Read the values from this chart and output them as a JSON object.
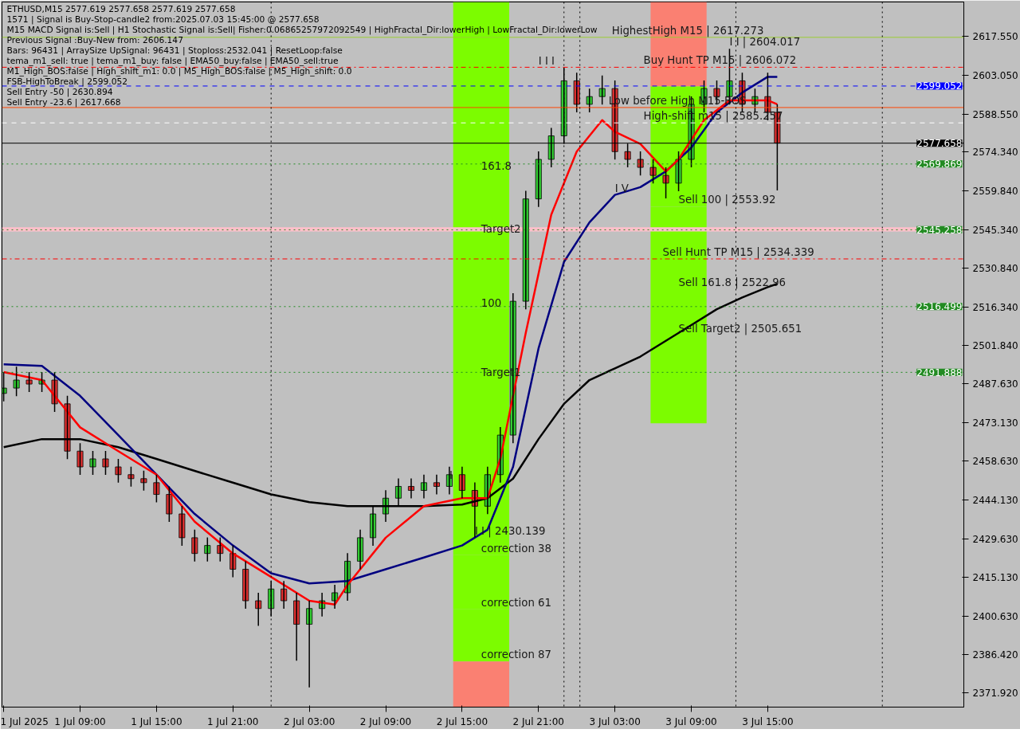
{
  "chart_data": {
    "type": "candlestick",
    "annotations": [
      "ETHUSD,M15  2577.619 2577.658 2577.619 2577.658",
      "1571 | Signal is Buy-Stop-candle2 from:2025.07.03 15:45:00 @ 2577.658",
      "M15 MACD Signal is:Sell | H1 Stochastic Signal is:Sell| Fisher:0.06865257972092549 | HighFractal_Dir:lowerHigh | LowFractal_Dir:lowerLow",
      "Previous Signal :Buy-New from: 2606.147",
      "Bars: 96431 | ArraySize UpSignal: 96431 | Stoploss:2532.041 | ResetLoop:false",
      "tema_m1_sell: true | tema_m1_buy: false | EMA50_buy:false | EMA50_sell:true",
      "M1_High_BOS:false | High_shift_m1: 0.0 | M5_High_BOS:false | M5_High_shift: 0.0",
      "                    FSB-HighToBreak | 2599.052",
      "Sell Entry -50 | 2630.894",
      "Sell Entry -23.6 | 2617.668",
      {
        "text": "I I | 2604.017",
        "x": "2025-07-03T12:00",
        "y": 2613.0
      },
      {
        "text": "HighestHigh   M15 | 2617.273",
        "x": "2025-07-03T02:45",
        "y": 2617.273
      },
      {
        "text": "I I I",
        "x": "2025-07-02T21:00",
        "y": 2606.0
      },
      {
        "text": "Buy Hunt TP M15 | 2606.072",
        "x": "2025-07-03T05:15",
        "y": 2606.072
      },
      {
        "text": "Low before High  M15-BOS",
        "x": "2025-07-03T02:30",
        "y": 2591.0
      },
      {
        "text": "High-shift m15 | 2585.257",
        "x": "2025-07-03T05:15",
        "y": 2585.257
      },
      {
        "text": "161.8",
        "x": "2025-07-02T16:30",
        "y": 2567.4
      },
      {
        "text": "Sell 100 | 2553.92",
        "x": "2025-07-03T08:00",
        "y": 2553.9
      },
      {
        "text": "Target2",
        "x": "2025-07-02T16:30",
        "y": 2543
      },
      {
        "text": "I V",
        "x": "2025-07-03T03:00",
        "y": 2558.3
      },
      {
        "text": "Sell Hunt TP M15 | 2534.339",
        "x": "2025-07-03T06:45",
        "y": 2534.339
      },
      {
        "text": "Sell 161.8 | 2522.96",
        "x": "2025-07-03T08:00",
        "y": 2523.0
      },
      {
        "text": "100",
        "x": "2025-07-02T16:30",
        "y": 2516.1
      },
      {
        "text": "Sell Target2 | 2505.651",
        "x": "2025-07-03T08:00",
        "y": 2505.7
      },
      {
        "text": "Target1",
        "x": "2025-07-02T16:30",
        "y": 2489.3
      },
      {
        "text": "I",
        "x": "2025-07-02T14:00",
        "y": 2450.7
      },
      {
        "text": "correction 38",
        "x": "2025-07-02T16:30",
        "y": 2423.5
      },
      {
        "text": "I I | 2430.139",
        "x": "2025-07-02T16:00",
        "y": 2430.1
      },
      {
        "text": "correction 61",
        "x": "2025-07-02T16:30",
        "y": 2403.2
      },
      {
        "text": "correction 87",
        "x": "2025-07-02T16:30",
        "y": 2383.7
      }
    ],
    "x": [
      "2025-07-01T03:00",
      "2025-07-01T04:00",
      "2025-07-01T05:00",
      "2025-07-01T06:00",
      "2025-07-01T07:00",
      "2025-07-01T08:00",
      "2025-07-01T09:00",
      "2025-07-01T10:00",
      "2025-07-01T11:00",
      "2025-07-01T12:00",
      "2025-07-01T13:00",
      "2025-07-01T14:00",
      "2025-07-01T15:00",
      "2025-07-01T16:00",
      "2025-07-01T17:00",
      "2025-07-01T18:00",
      "2025-07-01T19:00",
      "2025-07-01T20:00",
      "2025-07-01T21:00",
      "2025-07-01T22:00",
      "2025-07-01T23:00",
      "2025-07-02T00:00",
      "2025-07-02T01:00",
      "2025-07-02T02:00",
      "2025-07-02T03:00",
      "2025-07-02T04:00",
      "2025-07-02T05:00",
      "2025-07-02T06:00",
      "2025-07-02T07:00",
      "2025-07-02T08:00",
      "2025-07-02T09:00",
      "2025-07-02T10:00",
      "2025-07-02T11:00",
      "2025-07-02T12:00",
      "2025-07-02T13:00",
      "2025-07-02T14:00",
      "2025-07-02T15:00",
      "2025-07-02T16:00",
      "2025-07-02T17:00",
      "2025-07-02T18:00",
      "2025-07-02T19:00",
      "2025-07-02T20:00",
      "2025-07-02T21:00",
      "2025-07-02T22:00",
      "2025-07-02T23:00",
      "2025-07-03T00:00",
      "2025-07-03T01:00",
      "2025-07-03T02:00",
      "2025-07-03T03:00",
      "2025-07-03T04:00",
      "2025-07-03T05:00",
      "2025-07-03T06:00",
      "2025-07-03T07:00",
      "2025-07-03T08:00",
      "2025-07-03T09:00",
      "2025-07-03T10:00",
      "2025-07-03T11:00",
      "2025-07-03T12:00",
      "2025-07-03T13:00",
      "2025-07-03T14:00",
      "2025-07-03T15:00",
      "2025-07-03T15:45"
    ],
    "ohlc": [
      [
        2484.0,
        2492.0,
        2481.0,
        2486.0
      ],
      [
        2486.0,
        2494.0,
        2483.0,
        2489.0
      ],
      [
        2489.0,
        2492.0,
        2484.5,
        2487.5
      ],
      [
        2487.5,
        2492.0,
        2484.5,
        2489.0
      ],
      [
        2489.0,
        2492.0,
        2477.1,
        2480.1
      ],
      [
        2480.1,
        2483.1,
        2459.4,
        2462.4
      ],
      [
        2462.4,
        2465.4,
        2453.5,
        2456.5
      ],
      [
        2456.5,
        2462.5,
        2453.5,
        2459.5
      ],
      [
        2459.5,
        2462.5,
        2453.5,
        2456.5
      ],
      [
        2456.5,
        2459.5,
        2450.6,
        2453.6
      ],
      [
        2453.6,
        2456.6,
        2449.1,
        2452.1
      ],
      [
        2452.1,
        2455.1,
        2447.6,
        2450.6
      ],
      [
        2450.6,
        2453.6,
        2443.2,
        2446.2
      ],
      [
        2446.2,
        2449.2,
        2435.9,
        2438.9
      ],
      [
        2438.9,
        2441.9,
        2427.0,
        2430.0
      ],
      [
        2430.0,
        2433.0,
        2421.1,
        2424.1
      ],
      [
        2424.1,
        2430.1,
        2421.1,
        2427.1
      ],
      [
        2427.1,
        2430.1,
        2421.1,
        2424.1
      ],
      [
        2424.1,
        2427.1,
        2415.2,
        2418.2
      ],
      [
        2418.2,
        2421.2,
        2403.4,
        2406.4
      ],
      [
        2406.4,
        2409.4,
        2397.0,
        2403.5
      ],
      [
        2403.5,
        2413.8,
        2400.5,
        2410.8
      ],
      [
        2410.8,
        2413.8,
        2403.4,
        2406.4
      ],
      [
        2406.4,
        2409.4,
        2384.0,
        2397.6
      ],
      [
        2397.6,
        2406.5,
        2374.0,
        2403.5
      ],
      [
        2403.5,
        2409.4,
        2400.5,
        2406.4
      ],
      [
        2406.4,
        2412.4,
        2403.4,
        2409.4
      ],
      [
        2409.4,
        2424.2,
        2406.4,
        2421.2
      ],
      [
        2421.2,
        2433.0,
        2418.2,
        2430.0
      ],
      [
        2430.0,
        2441.9,
        2427.0,
        2438.9
      ],
      [
        2438.9,
        2447.8,
        2435.9,
        2444.8
      ],
      [
        2444.8,
        2452.2,
        2441.8,
        2449.2
      ],
      [
        2449.2,
        2452.2,
        2444.7,
        2447.7
      ],
      [
        2447.7,
        2453.6,
        2444.7,
        2450.6
      ],
      [
        2450.6,
        2453.6,
        2446.2,
        2449.2
      ],
      [
        2449.2,
        2456.6,
        2446.2,
        2453.6
      ],
      [
        2453.6,
        2456.6,
        2444.7,
        2447.7
      ],
      [
        2447.7,
        2450.7,
        2430.1,
        2441.8
      ],
      [
        2441.8,
        2456.6,
        2438.8,
        2453.6
      ],
      [
        2453.6,
        2471.4,
        2450.6,
        2468.4
      ],
      [
        2468.4,
        2521.5,
        2465.4,
        2518.5
      ],
      [
        2518.5,
        2559.8,
        2515.5,
        2556.8
      ],
      [
        2556.8,
        2574.6,
        2553.8,
        2571.6
      ],
      [
        2571.6,
        2583.4,
        2568.6,
        2580.4
      ],
      [
        2580.4,
        2606.0,
        2577.4,
        2601.0
      ],
      [
        2601.0,
        2604.0,
        2589.2,
        2592.2
      ],
      [
        2592.2,
        2598.1,
        2589.2,
        2595.1
      ],
      [
        2595.1,
        2603.0,
        2592.1,
        2598.1
      ],
      [
        2598.1,
        2601.1,
        2571.5,
        2574.5
      ],
      [
        2574.5,
        2577.5,
        2568.6,
        2571.6
      ],
      [
        2571.6,
        2574.6,
        2565.6,
        2568.6
      ],
      [
        2568.6,
        2571.6,
        2562.6,
        2565.6
      ],
      [
        2565.6,
        2568.6,
        2557.0,
        2562.7
      ],
      [
        2562.7,
        2574.6,
        2559.7,
        2571.6
      ],
      [
        2571.6,
        2595.2,
        2568.6,
        2592.2
      ],
      [
        2592.2,
        2601.1,
        2589.2,
        2598.1
      ],
      [
        2598.1,
        2601.1,
        2592.1,
        2595.1
      ],
      [
        2595.1,
        2613.0,
        2592.1,
        2601.0
      ],
      [
        2601.0,
        2604.0,
        2589.2,
        2592.2
      ],
      [
        2592.2,
        2598.1,
        2589.2,
        2595.1
      ],
      [
        2595.1,
        2604.0,
        2586.2,
        2589.2
      ],
      [
        2589.2,
        2592.2,
        2560.0,
        2577.7
      ]
    ],
    "series": [
      {
        "type": "bar",
        "color": "#7cfc00",
        "x": [
          "2025-07-02T16:30"
        ],
        "base": [
          2383.7
        ],
        "values": [
          19.5
        ]
      },
      {
        "type": "bar",
        "color": "#7cfc00",
        "x": [
          "2025-07-02T16:30"
        ],
        "base": [
          2403.2
        ],
        "values": [
          20.3
        ]
      },
      {
        "type": "bar",
        "color": "#7cfc00",
        "x": [
          "2025-07-02T16:30"
        ],
        "base": [
          2423.5
        ],
        "values": [
          65.8
        ]
      },
      {
        "type": "bar",
        "color": "#7cfc00",
        "x": [
          "2025-07-02T16:30"
        ],
        "base": [
          2489.3
        ],
        "values": [
          26.8
        ]
      },
      {
        "type": "bar",
        "color": "#7cfc00",
        "x": [
          "2025-07-02T16:30"
        ],
        "base": [
          2516.1
        ],
        "values": [
          26.9
        ]
      },
      {
        "type": "bar",
        "color": "#7cfc00",
        "x": [
          "2025-07-02T16:30"
        ],
        "base": [
          2543
        ],
        "values": [
          24.4
        ]
      },
      {
        "type": "bar",
        "color": "#7cfc00",
        "x": [
          "2025-07-02T16:30"
        ],
        "base": [
          2567.4
        ],
        "values": [
          63.1
        ]
      },
      {
        "type": "bar",
        "color": "#7cfc00",
        "x": [
          "2025-07-03T08:00"
        ],
        "base": [
          2472.8
        ],
        "values": [
          32.9
        ]
      },
      {
        "type": "bar",
        "color": "#7cfc00",
        "x": [
          "2025-07-03T08:00"
        ],
        "base": [
          2505.7
        ],
        "values": [
          17.3
        ]
      },
      {
        "type": "bar",
        "color": "#7cfc00",
        "x": [
          "2025-07-03T08:00"
        ],
        "base": [
          2523.0
        ],
        "values": [
          30.9
        ]
      },
      {
        "type": "bar",
        "color": "#7cfc00",
        "x": [
          "2025-07-03T08:00"
        ],
        "base": [
          2553.9
        ],
        "values": [
          45.1
        ]
      },
      {
        "type": "bar",
        "color": "#fa8072",
        "x": [
          "2025-07-02T16:30"
        ],
        "base": [
          2366.6
        ],
        "values": [
          17.1
        ]
      },
      {
        "type": "bar",
        "color": "#fa8072",
        "x": [
          "2025-07-03T08:00"
        ],
        "base": [
          2599
        ],
        "values": [
          31.5
        ]
      },
      {
        "type": "line",
        "color": "#000000",
        "x": [
          "2025-07-01T03:00",
          "2025-07-01T06:00",
          "2025-07-01T09:00",
          "2025-07-01T12:00",
          "2025-07-01T15:00",
          "2025-07-01T18:00",
          "2025-07-01T21:00",
          "2025-07-02T00:00",
          "2025-07-02T03:00",
          "2025-07-02T06:00",
          "2025-07-02T09:00",
          "2025-07-02T12:00",
          "2025-07-02T15:00",
          "2025-07-02T17:00",
          "2025-07-02T19:00",
          "2025-07-02T21:00",
          "2025-07-02T23:00",
          "2025-07-03T01:00",
          "2025-07-03T03:00",
          "2025-07-03T05:00",
          "2025-07-03T07:00",
          "2025-07-03T09:00",
          "2025-07-03T11:00",
          "2025-07-03T13:00",
          "2025-07-03T15:00",
          "2025-07-03T15:45"
        ],
        "values": [
          2463.9,
          2466.9,
          2466.9,
          2463.9,
          2459.5,
          2455.0,
          2450.6,
          2446.2,
          2443.3,
          2441.8,
          2441.8,
          2441.8,
          2442.4,
          2444.8,
          2452.1,
          2466.9,
          2480.1,
          2489.0,
          2493.4,
          2497.8,
          2503.7,
          2509.6,
          2515.5,
          2519.9,
          2523.8,
          2525.0
        ]
      },
      {
        "type": "line",
        "color": "#000080",
        "x": [
          "2025-07-01T03:00",
          "2025-07-01T06:00",
          "2025-07-01T09:00",
          "2025-07-01T12:00",
          "2025-07-01T15:00",
          "2025-07-01T18:00",
          "2025-07-01T21:00",
          "2025-07-02T00:00",
          "2025-07-02T03:00",
          "2025-07-02T06:00",
          "2025-07-02T09:00",
          "2025-07-02T12:00",
          "2025-07-02T15:00",
          "2025-07-02T17:00",
          "2025-07-02T19:00",
          "2025-07-02T21:00",
          "2025-07-02T23:00",
          "2025-07-03T01:00",
          "2025-07-03T03:00",
          "2025-07-03T05:00",
          "2025-07-03T07:00",
          "2025-07-03T09:00",
          "2025-07-03T11:00",
          "2025-07-03T13:00",
          "2025-07-03T15:00",
          "2025-07-03T15:45"
        ],
        "values": [
          2494.9,
          2494.3,
          2483.1,
          2468.4,
          2453.6,
          2438.9,
          2427.1,
          2416.7,
          2412.9,
          2413.8,
          2418.2,
          2422.6,
          2427.1,
          2433.0,
          2456.5,
          2500.8,
          2533.2,
          2548.0,
          2558.3,
          2561.2,
          2567.1,
          2576.0,
          2589.2,
          2596.6,
          2602.5,
          2602.5
        ]
      },
      {
        "type": "line",
        "color": "#ff0000",
        "x": [
          "2025-07-01T03:00",
          "2025-07-01T06:00",
          "2025-07-01T09:00",
          "2025-07-01T12:00",
          "2025-07-01T15:00",
          "2025-07-01T18:00",
          "2025-07-01T21:00",
          "2025-07-02T00:00",
          "2025-07-02T03:00",
          "2025-07-02T05:00",
          "2025-07-02T06:00",
          "2025-07-02T09:00",
          "2025-07-02T12:00",
          "2025-07-02T15:00",
          "2025-07-02T17:00",
          "2025-07-02T18:00",
          "2025-07-02T20:00",
          "2025-07-02T22:00",
          "2025-07-03T00:00",
          "2025-07-03T02:00",
          "2025-07-03T03:00",
          "2025-07-03T05:00",
          "2025-07-03T07:00",
          "2025-07-03T08:00",
          "2025-07-03T10:00",
          "2025-07-03T12:00",
          "2025-07-03T15:00",
          "2025-07-03T15:45"
        ],
        "values": [
          2492.0,
          2489.0,
          2471.3,
          2462.4,
          2453.6,
          2436.0,
          2424.1,
          2415.3,
          2406.4,
          2405.0,
          2412.3,
          2430.0,
          2441.8,
          2444.8,
          2444.8,
          2459.5,
          2506.7,
          2550.9,
          2574.5,
          2586.3,
          2581.9,
          2577.4,
          2567.1,
          2571.6,
          2586.3,
          2593.7,
          2593.7,
          2592.2
        ]
      }
    ],
    "ref_lines": [
      {
        "axis": "y",
        "value": 2617.273,
        "label": null,
        "color": "#9acd32",
        "line_style": "solid"
      },
      {
        "axis": "y",
        "value": 2606.072,
        "label": null,
        "color": "#ff0000",
        "line_style": "dashdot"
      },
      {
        "axis": "y",
        "value": 2599.052,
        "label": "2599.052",
        "color": "#0000ff",
        "line_style": "dashed"
      },
      {
        "axis": "y",
        "value": 2591.0,
        "label": null,
        "color": "#ff4500",
        "line_style": "solid"
      },
      {
        "axis": "y",
        "value": 2585.257,
        "label": null,
        "color": "#ffffff",
        "line_style": "dashed"
      },
      {
        "axis": "y",
        "value": 2577.658,
        "label": "2577.658",
        "color": "#000000",
        "line_style": "solid"
      },
      {
        "axis": "y",
        "value": 2569.869,
        "label": "2569.869",
        "color": "#228b22",
        "line_style": "dotted"
      },
      {
        "axis": "y",
        "value": 2545.258,
        "label": "2545.258",
        "color": "#228b22",
        "line_style": "dotted"
      },
      {
        "axis": "y",
        "value": 2534.339,
        "label": null,
        "color": "#ff0000",
        "line_style": "dashdot"
      },
      {
        "axis": "y",
        "value": 2516.499,
        "label": "2516.499",
        "color": "#228b22",
        "line_style": "dotted"
      },
      {
        "axis": "y",
        "value": 2491.888,
        "label": "2491.888",
        "color": "#228b22",
        "line_style": "dotted"
      },
      {
        "axis": "x",
        "value": "2025-07-02T00:00",
        "label": null,
        "color": "#000000",
        "line_style": "dotted"
      },
      {
        "axis": "x",
        "value": "2025-07-02T23:00",
        "label": null,
        "color": "#000000",
        "line_style": "dotted"
      },
      {
        "axis": "x",
        "value": "2025-07-03T00:15",
        "label": null,
        "color": "#000000",
        "line_style": "dotted"
      },
      {
        "axis": "x",
        "value": "2025-07-03T12:30",
        "label": null,
        "color": "#000000",
        "line_style": "dotted"
      },
      {
        "axis": "x",
        "value": "2025-07-04T00:00",
        "label": null,
        "color": "#000000",
        "line_style": "dotted"
      }
    ],
    "bands": [
      {
        "axis": "y",
        "from": 2544.6,
        "to": 2546.2,
        "label": null,
        "color": "#ffc0cb"
      }
    ],
    "xlim": [
      "2025-07-01T02:52",
      "2025-07-04T06:24"
    ],
    "ylim": [
      2366.6,
      2630.5
    ],
    "xticks": [
      {
        "value": "2025-07-01T03:00",
        "label": "1 Jul 2025"
      },
      {
        "value": "2025-07-01T09:00",
        "label": "1 Jul 09:00"
      },
      {
        "value": "2025-07-01T15:00",
        "label": "1 Jul 15:00"
      },
      {
        "value": "2025-07-01T21:00",
        "label": "1 Jul 21:00"
      },
      {
        "value": "2025-07-02T03:00",
        "label": "2 Jul 03:00"
      },
      {
        "value": "2025-07-02T09:00",
        "label": "2 Jul 09:00"
      },
      {
        "value": "2025-07-02T15:00",
        "label": "2 Jul 15:00"
      },
      {
        "value": "2025-07-02T21:00",
        "label": "2 Jul 21:00"
      },
      {
        "value": "2025-07-03T03:00",
        "label": "3 Jul 03:00"
      },
      {
        "value": "2025-07-03T09:00",
        "label": "3 Jul 09:00"
      },
      {
        "value": "2025-07-03T15:00",
        "label": "3 Jul 15:00"
      }
    ],
    "yticks": [
      {
        "value": 2617.55,
        "label": "2617.550"
      },
      {
        "value": 2603.05,
        "label": "2603.050"
      },
      {
        "value": 2588.55,
        "label": "2588.550"
      },
      {
        "value": 2574.34,
        "label": "2574.340"
      },
      {
        "value": 2559.84,
        "label": "2559.840"
      },
      {
        "value": 2545.34,
        "label": "2545.340"
      },
      {
        "value": 2530.84,
        "label": "2530.840"
      },
      {
        "value": 2516.34,
        "label": "2516.340"
      },
      {
        "value": 2501.84,
        "label": "2501.840"
      },
      {
        "value": 2487.63,
        "label": "2487.630"
      },
      {
        "value": 2473.13,
        "label": "2473.130"
      },
      {
        "value": 2458.63,
        "label": "2458.630"
      },
      {
        "value": 2444.13,
        "label": "2444.130"
      },
      {
        "value": 2429.63,
        "label": "2429.630"
      },
      {
        "value": 2415.13,
        "label": "2415.130"
      },
      {
        "value": 2400.63,
        "label": "2400.630"
      },
      {
        "value": 2386.42,
        "label": "2386.420"
      },
      {
        "value": 2371.92,
        "label": "2371.920"
      }
    ],
    "grid": false
  }
}
